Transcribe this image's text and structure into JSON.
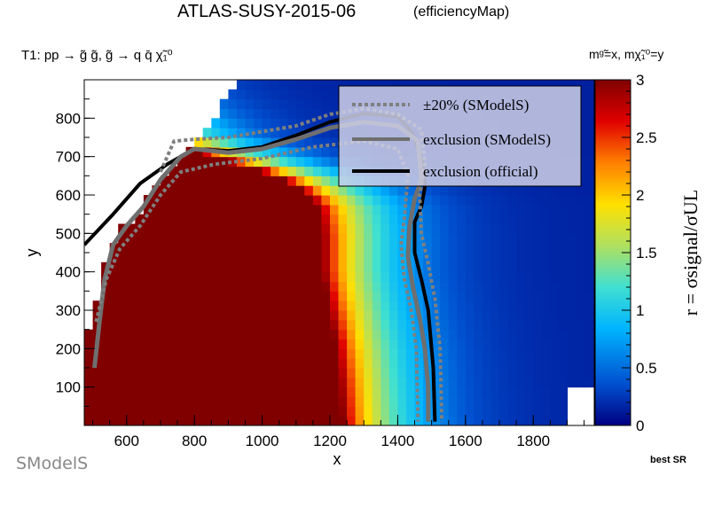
{
  "page": {
    "title": "ATLAS-SUSY-2015-06",
    "subtitle": "(efficiencyMap)",
    "process": "T1: pp → g̃ g̃, g̃ → q q̄ χ̃₁⁰",
    "mass_definition": "mᵍ̃=x, mχ̃₁⁰=y",
    "best_sr": "best SR",
    "logo_text": "SModelS"
  },
  "chart_data": {
    "type": "heatmap",
    "xlabel": "x",
    "ylabel": "y",
    "xlim": [
      475,
      1980
    ],
    "ylim": [
      0,
      900
    ],
    "xticks": [
      600,
      800,
      1000,
      1200,
      1400,
      1600,
      1800
    ],
    "yticks": [
      100,
      200,
      300,
      400,
      500,
      600,
      700,
      800
    ],
    "colorbar": {
      "label": "r = σsignal/σUL",
      "range": [
        0,
        3
      ],
      "ticks": [
        0,
        0.5,
        1,
        1.5,
        2,
        2.5,
        3
      ],
      "colors": [
        "#000080",
        "#0050d0",
        "#00b4ff",
        "#40e0d0",
        "#b0e060",
        "#ffe000",
        "#ff8000",
        "#e00000",
        "#800000"
      ]
    },
    "grid": false,
    "legend_position": "top-right",
    "legend": [
      {
        "label": "±20% (SModelS)",
        "style": "dotted",
        "color": "#7f7f7f"
      },
      {
        "label": "exclusion (SModelS)",
        "style": "solid",
        "color": "#6f6f6f"
      },
      {
        "label": "exclusion (official)",
        "style": "solid",
        "color": "#000000"
      }
    ],
    "series": [
      {
        "name": "exclusion (official)",
        "x": [
          475,
          560,
          640,
          720,
          800,
          900,
          1000,
          1100,
          1200,
          1300,
          1400,
          1445,
          1475,
          1480,
          1470,
          1450,
          1450,
          1470,
          1490,
          1505,
          1510
        ],
        "y": [
          470,
          550,
          630,
          680,
          720,
          715,
          725,
          755,
          790,
          812,
          805,
          760,
          680,
          620,
          570,
          530,
          450,
          380,
          300,
          150,
          10
        ]
      },
      {
        "name": "exclusion (SModelS)",
        "x": [
          505,
          520,
          535,
          560,
          600,
          650,
          700,
          760,
          800,
          900,
          1000,
          1100,
          1200,
          1300,
          1400,
          1460,
          1470,
          1450,
          1435,
          1430,
          1445,
          1465,
          1480,
          1490,
          1490
        ],
        "y": [
          150,
          270,
          380,
          470,
          520,
          570,
          640,
          700,
          720,
          710,
          720,
          745,
          775,
          790,
          780,
          740,
          640,
          590,
          520,
          440,
          360,
          280,
          200,
          100,
          10
        ]
      },
      {
        "name": "±20% (SModelS) lower",
        "x": [
          510,
          540,
          580,
          640,
          700,
          760,
          860,
          1000,
          1150,
          1300,
          1400,
          1430,
          1420,
          1410,
          1420,
          1440,
          1455,
          1460
        ],
        "y": [
          270,
          380,
          460,
          520,
          600,
          660,
          680,
          695,
          725,
          740,
          720,
          650,
          540,
          470,
          380,
          300,
          200,
          10
        ]
      },
      {
        "name": "±20% (SModelS) upper",
        "x": [
          700,
          740,
          800,
          900,
          1000,
          1100,
          1200,
          1300,
          1400,
          1470,
          1480,
          1465,
          1470,
          1490,
          1510,
          1525,
          1530
        ],
        "y": [
          660,
          740,
          745,
          750,
          765,
          780,
          810,
          825,
          810,
          770,
          680,
          600,
          500,
          420,
          330,
          200,
          10
        ]
      }
    ]
  }
}
